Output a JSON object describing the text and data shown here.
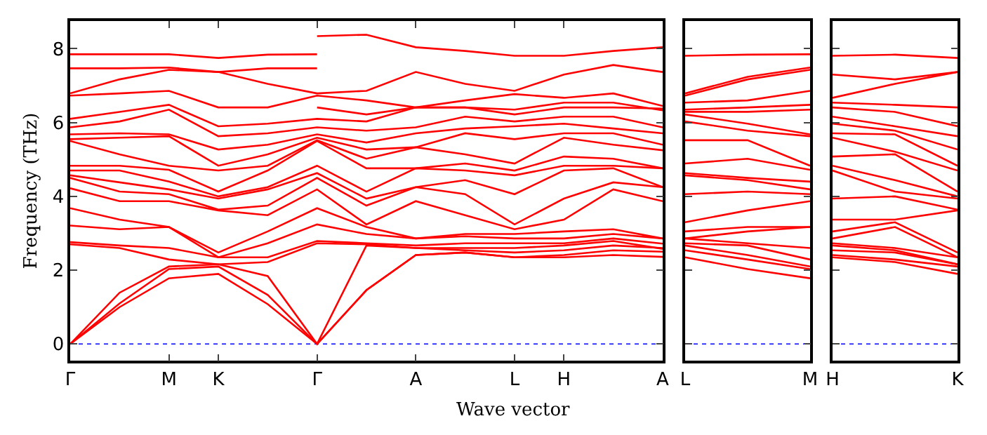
{
  "chart_data": [
    {
      "type": "line",
      "ylabel": "Frequency (THz)",
      "xlabel": "Wave vector",
      "grid": false,
      "marker": "none",
      "line_style": "solid",
      "categories": [
        "Γ",
        null,
        "M",
        "K",
        null,
        "Γ",
        null,
        "A",
        null,
        "L",
        "H",
        null,
        "A"
      ],
      "ylim": [
        -0.45,
        8.75
      ],
      "yticks": [
        0,
        2,
        4,
        6,
        8
      ],
      "ref_lines": [
        {
          "axis": "y",
          "value": 0,
          "color": "#0000ff",
          "line_style": "dotted"
        }
      ],
      "series": [
        {
          "color": "#ff0000",
          "values": [
            7.85,
            7.85,
            7.85,
            7.75,
            7.84,
            7.85,
            null,
            null,
            null,
            null,
            null,
            null,
            null
          ]
        },
        {
          "color": "#ff0000",
          "values": [
            7.47,
            7.47,
            7.49,
            7.37,
            7.47,
            7.47,
            null,
            null,
            null,
            null,
            null,
            null,
            null
          ]
        },
        {
          "color": "#ff0000",
          "values": [
            null,
            null,
            null,
            null,
            null,
            8.34,
            8.38,
            8.04,
            7.94,
            7.81,
            7.81,
            7.94,
            8.04
          ]
        },
        {
          "color": "#ff0000",
          "values": [
            null,
            null,
            null,
            null,
            null,
            6.41,
            6.22,
            6.41,
            6.41,
            6.35,
            6.54,
            6.54,
            6.33
          ]
        },
        {
          "color": "#ff0000",
          "values": [
            6.79,
            7.17,
            7.43,
            7.37,
            7.05,
            6.79,
            6.86,
            7.37,
            7.05,
            6.86,
            7.3,
            7.56,
            7.37
          ]
        },
        {
          "color": "#ff0000",
          "values": [
            6.73,
            6.79,
            6.86,
            6.41,
            6.41,
            6.73,
            6.6,
            6.41,
            6.6,
            6.77,
            6.67,
            6.79,
            6.45
          ]
        },
        {
          "color": "#ff0000",
          "values": [
            6.1,
            6.29,
            6.48,
            5.9,
            5.97,
            6.1,
            6.03,
            6.41,
            6.41,
            6.22,
            6.41,
            6.41,
            6.38
          ]
        },
        {
          "color": "#ff0000",
          "values": [
            5.87,
            6.03,
            6.35,
            5.63,
            5.71,
            5.87,
            5.78,
            5.87,
            6.16,
            6.03,
            6.16,
            6.16,
            5.87
          ]
        },
        {
          "color": "#ff0000",
          "values": [
            5.68,
            5.71,
            5.68,
            5.27,
            5.4,
            5.68,
            5.46,
            5.71,
            5.84,
            5.9,
            5.97,
            5.84,
            5.71
          ]
        },
        {
          "color": "#ff0000",
          "values": [
            5.55,
            5.59,
            5.63,
            4.83,
            5.14,
            5.59,
            5.27,
            5.33,
            5.71,
            5.55,
            5.71,
            5.71,
            5.4
          ]
        },
        {
          "color": "#ff0000",
          "values": [
            5.5,
            5.14,
            4.83,
            4.7,
            4.83,
            5.52,
            5.02,
            5.33,
            5.14,
            4.89,
            5.59,
            5.4,
            5.25
          ]
        },
        {
          "color": "#ff0000",
          "values": [
            4.83,
            4.83,
            4.72,
            4.13,
            4.7,
            5.5,
            4.76,
            4.76,
            4.89,
            4.7,
            5.08,
            5.02,
            4.76
          ]
        },
        {
          "color": "#ff0000",
          "values": [
            4.7,
            4.7,
            4.4,
            4.0,
            4.25,
            4.83,
            4.13,
            4.76,
            4.7,
            4.57,
            4.83,
            4.83,
            4.76
          ]
        },
        {
          "color": "#ff0000",
          "values": [
            4.57,
            4.38,
            4.19,
            3.94,
            4.19,
            4.63,
            3.94,
            4.25,
            4.44,
            4.06,
            4.7,
            4.76,
            4.25
          ]
        },
        {
          "color": "#ff0000",
          "values": [
            4.5,
            4.13,
            4.06,
            3.64,
            3.75,
            4.5,
            3.75,
            4.25,
            4.06,
            3.24,
            3.94,
            4.38,
            4.25
          ]
        },
        {
          "color": "#ff0000",
          "values": [
            4.22,
            3.87,
            3.87,
            3.62,
            3.49,
            4.19,
            3.24,
            3.87,
            3.49,
            3.11,
            3.37,
            4.19,
            3.87
          ]
        },
        {
          "color": "#ff0000",
          "values": [
            3.68,
            3.37,
            3.17,
            2.48,
            3.05,
            3.68,
            3.17,
            2.86,
            2.98,
            2.98,
            3.05,
            3.11,
            2.86
          ]
        },
        {
          "color": "#ff0000",
          "values": [
            3.21,
            3.11,
            3.17,
            2.35,
            2.73,
            3.24,
            2.98,
            2.86,
            2.92,
            2.86,
            2.86,
            2.98,
            2.86
          ]
        },
        {
          "color": "#ff0000",
          "values": [
            2.76,
            2.67,
            2.6,
            2.35,
            2.35,
            2.79,
            2.73,
            2.67,
            2.73,
            2.73,
            2.73,
            2.86,
            2.72
          ]
        },
        {
          "color": "#ff0000",
          "values": [
            2.7,
            2.6,
            2.29,
            2.16,
            2.22,
            2.73,
            2.7,
            2.6,
            2.6,
            2.6,
            2.67,
            2.79,
            2.58
          ]
        },
        {
          "color": "#ff0000",
          "values": [
            0,
            1.39,
            2.1,
            2.16,
            1.84,
            0,
            2.67,
            2.6,
            2.54,
            2.48,
            2.54,
            2.67,
            2.6
          ]
        },
        {
          "color": "#ff0000",
          "values": [
            0,
            1.1,
            2.03,
            2.1,
            1.33,
            0,
            1.46,
            2.41,
            2.48,
            2.35,
            2.41,
            2.54,
            2.5
          ]
        },
        {
          "color": "#ff0000",
          "values": [
            0,
            1.0,
            1.78,
            1.9,
            1.08,
            0,
            1.46,
            2.41,
            2.48,
            2.35,
            2.35,
            2.41,
            2.36
          ]
        }
      ]
    },
    {
      "type": "line",
      "grid": false,
      "marker": "none",
      "line_style": "solid",
      "tick_labels": "x",
      "categories": [
        "L",
        null,
        "M"
      ],
      "ylim": [
        -0.45,
        8.75
      ],
      "yticks": [
        {
          "value": 0,
          "label": null
        },
        {
          "value": 2,
          "label": null
        },
        {
          "value": 4,
          "label": null
        },
        {
          "value": 6,
          "label": null
        },
        {
          "value": 8,
          "label": null
        }
      ],
      "ref_lines": [
        {
          "axis": "y",
          "value": 0,
          "color": "#0000ff",
          "line_style": "dotted"
        }
      ],
      "series": [
        {
          "color": "#ff0000",
          "values": [
            7.81,
            7.84,
            7.85
          ]
        },
        {
          "color": "#ff0000",
          "values": [
            6.79,
            7.24,
            7.49
          ]
        },
        {
          "color": "#ff0000",
          "values": [
            6.73,
            7.17,
            7.43
          ]
        },
        {
          "color": "#ff0000",
          "values": [
            6.54,
            6.6,
            6.86
          ]
        },
        {
          "color": "#ff0000",
          "values": [
            6.35,
            6.41,
            6.48
          ]
        },
        {
          "color": "#ff0000",
          "values": [
            6.29,
            6.29,
            6.35
          ]
        },
        {
          "color": "#ff0000",
          "values": [
            6.22,
            5.97,
            5.68
          ]
        },
        {
          "color": "#ff0000",
          "values": [
            6.03,
            5.78,
            5.63
          ]
        },
        {
          "color": "#ff0000",
          "values": [
            5.52,
            5.52,
            4.83
          ]
        },
        {
          "color": "#ff0000",
          "values": [
            4.89,
            5.02,
            4.72
          ]
        },
        {
          "color": "#ff0000",
          "values": [
            4.63,
            4.5,
            4.4
          ]
        },
        {
          "color": "#ff0000",
          "values": [
            4.57,
            4.44,
            4.19
          ]
        },
        {
          "color": "#ff0000",
          "values": [
            4.06,
            4.13,
            4.06
          ]
        },
        {
          "color": "#ff0000",
          "values": [
            3.3,
            3.62,
            3.87
          ]
        },
        {
          "color": "#ff0000",
          "values": [
            3.05,
            3.17,
            3.17
          ]
        },
        {
          "color": "#ff0000",
          "values": [
            2.86,
            3.05,
            3.17
          ]
        },
        {
          "color": "#ff0000",
          "values": [
            2.86,
            2.73,
            2.6
          ]
        },
        {
          "color": "#ff0000",
          "values": [
            2.73,
            2.67,
            2.29
          ]
        },
        {
          "color": "#ff0000",
          "values": [
            2.67,
            2.41,
            2.1
          ]
        },
        {
          "color": "#ff0000",
          "values": [
            2.54,
            2.29,
            2.03
          ]
        },
        {
          "color": "#ff0000",
          "values": [
            2.35,
            2.03,
            1.78
          ]
        }
      ]
    },
    {
      "type": "line",
      "grid": false,
      "marker": "none",
      "line_style": "solid",
      "tick_labels": "x",
      "categories": [
        "H",
        null,
        "K"
      ],
      "ylim": [
        -0.45,
        8.75
      ],
      "yticks": [
        {
          "value": 0,
          "label": null
        },
        {
          "value": 2,
          "label": null
        },
        {
          "value": 4,
          "label": null
        },
        {
          "value": 6,
          "label": null
        },
        {
          "value": 8,
          "label": null
        }
      ],
      "ref_lines": [
        {
          "axis": "y",
          "value": 0,
          "color": "#0000ff",
          "line_style": "dotted"
        }
      ],
      "series": [
        {
          "color": "#ff0000",
          "values": [
            7.81,
            7.84,
            7.75
          ]
        },
        {
          "color": "#ff0000",
          "values": [
            7.3,
            7.17,
            7.37
          ]
        },
        {
          "color": "#ff0000",
          "values": [
            6.67,
            7.05,
            7.37
          ]
        },
        {
          "color": "#ff0000",
          "values": [
            6.54,
            6.48,
            6.41
          ]
        },
        {
          "color": "#ff0000",
          "values": [
            6.41,
            6.29,
            5.9
          ]
        },
        {
          "color": "#ff0000",
          "values": [
            6.16,
            5.9,
            5.63
          ]
        },
        {
          "color": "#ff0000",
          "values": [
            5.97,
            5.78,
            5.27
          ]
        },
        {
          "color": "#ff0000",
          "values": [
            5.71,
            5.68,
            4.83
          ]
        },
        {
          "color": "#ff0000",
          "values": [
            5.59,
            5.21,
            4.7
          ]
        },
        {
          "color": "#ff0000",
          "values": [
            5.08,
            5.14,
            4.13
          ]
        },
        {
          "color": "#ff0000",
          "values": [
            4.83,
            4.44,
            4.0
          ]
        },
        {
          "color": "#ff0000",
          "values": [
            4.7,
            4.13,
            3.94
          ]
        },
        {
          "color": "#ff0000",
          "values": [
            3.94,
            4.0,
            3.64
          ]
        },
        {
          "color": "#ff0000",
          "values": [
            3.37,
            3.37,
            3.62
          ]
        },
        {
          "color": "#ff0000",
          "values": [
            3.05,
            3.3,
            2.48
          ]
        },
        {
          "color": "#ff0000",
          "values": [
            2.86,
            3.17,
            2.35
          ]
        },
        {
          "color": "#ff0000",
          "values": [
            2.73,
            2.6,
            2.35
          ]
        },
        {
          "color": "#ff0000",
          "values": [
            2.67,
            2.54,
            2.16
          ]
        },
        {
          "color": "#ff0000",
          "values": [
            2.54,
            2.48,
            2.16
          ]
        },
        {
          "color": "#ff0000",
          "values": [
            2.41,
            2.29,
            2.1
          ]
        },
        {
          "color": "#ff0000",
          "values": [
            2.35,
            2.22,
            1.9
          ]
        }
      ]
    }
  ]
}
